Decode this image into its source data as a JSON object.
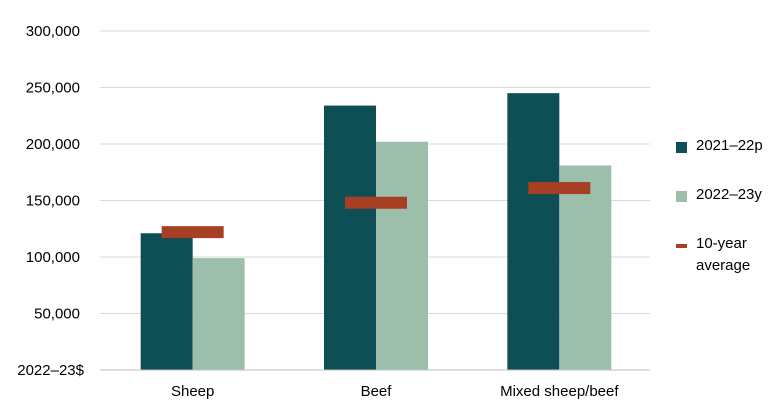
{
  "chart_data": {
    "type": "bar",
    "categories": [
      "Sheep",
      "Beef",
      "Mixed sheep/beef"
    ],
    "series": [
      {
        "name": "2021–22p",
        "color": "#0d4f55",
        "values": [
          121000,
          234000,
          245000
        ]
      },
      {
        "name": "2022–23y",
        "color": "#9cbfab",
        "values": [
          99000,
          202000,
          181000
        ]
      }
    ],
    "markers": {
      "name": "10-year average",
      "color": "#a63f24",
      "values": [
        122000,
        148000,
        161000
      ]
    },
    "yticks": [
      50000,
      100000,
      150000,
      200000,
      250000,
      300000
    ],
    "yticklabels": [
      "50,000",
      "100,000",
      "150,000",
      "200,000",
      "250,000",
      "300,000"
    ],
    "unit_label": "2022–23$",
    "ylim": [
      0,
      300000
    ],
    "grid": true,
    "legend_position": "right"
  },
  "legend": {
    "items": [
      {
        "label": "2021–22p",
        "kind": "swatch",
        "color": "#0d4f55"
      },
      {
        "label": "2022–23y",
        "kind": "swatch",
        "color": "#9cbfab"
      },
      {
        "label": "10-year average",
        "kind": "dash",
        "color": "#a63f24"
      }
    ]
  }
}
